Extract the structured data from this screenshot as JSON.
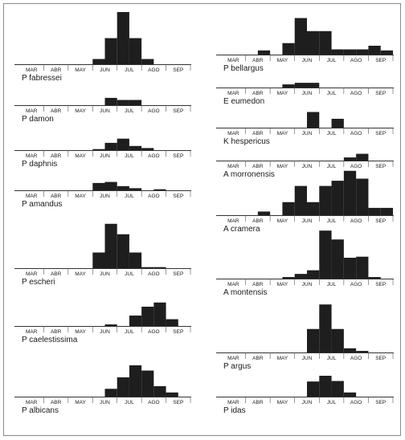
{
  "chart_data": [
    {
      "type": "bar",
      "name": "P fabressei",
      "categories": [
        "MAR",
        "ABR",
        "MAY",
        "JUN",
        "JUL",
        "AGO",
        "SEP"
      ],
      "half_month_values": [
        0,
        0,
        0,
        0,
        0,
        0,
        1,
        5,
        10,
        5,
        1,
        0,
        0,
        0
      ]
    },
    {
      "type": "bar",
      "name": "P damon",
      "categories": [
        "MAR",
        "ABR",
        "MAY",
        "JUN",
        "JUL",
        "AGO",
        "SEP"
      ],
      "half_month_values": [
        0,
        0,
        0,
        0,
        0,
        0,
        0,
        1.4,
        1.0,
        1.0,
        0,
        0,
        0,
        0
      ]
    },
    {
      "type": "bar",
      "name": "P daphnis",
      "categories": [
        "MAR",
        "ABR",
        "MAY",
        "JUN",
        "JUL",
        "AGO",
        "SEP"
      ],
      "half_month_values": [
        0,
        0,
        0,
        0,
        0,
        0,
        0.2,
        1.4,
        2.2,
        0.8,
        0.4,
        0,
        0,
        0
      ]
    },
    {
      "type": "bar",
      "name": "P amandus",
      "categories": [
        "MAR",
        "ABR",
        "MAY",
        "JUN",
        "JUL",
        "AGO",
        "SEP"
      ],
      "half_month_values": [
        0,
        0,
        0,
        0,
        0,
        0,
        1.4,
        1.6,
        0.8,
        0.4,
        0,
        0.2,
        0,
        0
      ]
    },
    {
      "type": "bar",
      "name": "P escheri",
      "categories": [
        "MAR",
        "ABR",
        "MAY",
        "JUN",
        "JUL",
        "AGO",
        "SEP"
      ],
      "half_month_values": [
        0,
        0,
        0,
        0,
        0,
        0,
        3,
        8.5,
        6.5,
        3,
        0.2,
        0.2,
        0,
        0
      ]
    },
    {
      "type": "bar",
      "name": "P caelestissima",
      "categories": [
        "MAR",
        "ABR",
        "MAY",
        "JUN",
        "JUL",
        "AGO",
        "SEP"
      ],
      "half_month_values": [
        0,
        0,
        0,
        0,
        0,
        0,
        0,
        0.3,
        0,
        2,
        3.7,
        4.5,
        1.3,
        0
      ]
    },
    {
      "type": "bar",
      "name": "P albicans",
      "categories": [
        "MAR",
        "ABR",
        "MAY",
        "JUN",
        "JUL",
        "AGO",
        "SEP"
      ],
      "half_month_values": [
        0,
        0,
        0,
        0,
        0,
        0,
        0,
        1.5,
        3.7,
        6,
        5,
        2,
        0.8,
        0
      ]
    },
    {
      "type": "bar",
      "name": "P bellargus",
      "categories": [
        "MAR",
        "ABR",
        "MAY",
        "JUN",
        "JUL",
        "AGO",
        "SEP"
      ],
      "half_month_values": [
        0,
        0,
        0,
        0.8,
        0,
        2.2,
        7,
        4.5,
        4.5,
        1,
        1,
        1,
        1.7,
        0.8
      ]
    },
    {
      "type": "bar",
      "name": "E eumedon",
      "categories": [
        "MAR",
        "ABR",
        "MAY",
        "JUN",
        "JUL",
        "AGO",
        "SEP"
      ],
      "half_month_values": [
        0,
        0,
        0,
        0,
        0,
        0.6,
        0.9,
        0.9,
        0,
        0,
        0,
        0,
        0,
        0
      ]
    },
    {
      "type": "bar",
      "name": "K hespericus",
      "categories": [
        "MAR",
        "ABR",
        "MAY",
        "JUN",
        "JUL",
        "AGO",
        "SEP"
      ],
      "half_month_values": [
        0,
        0,
        0,
        0,
        0,
        0,
        0,
        3,
        0,
        1.7,
        0,
        0,
        0,
        0
      ]
    },
    {
      "type": "bar",
      "name": "A morronensis",
      "categories": [
        "MAR",
        "ABR",
        "MAY",
        "JUN",
        "JUL",
        "AGO",
        "SEP"
      ],
      "half_month_values": [
        0,
        0,
        0,
        0,
        0,
        0,
        0,
        0,
        0,
        0,
        0.6,
        1.3,
        0,
        0
      ]
    },
    {
      "type": "bar",
      "name": "A cramera",
      "categories": [
        "MAR",
        "ABR",
        "MAY",
        "JUN",
        "JUL",
        "AGO",
        "SEP"
      ],
      "half_month_values": [
        0,
        0,
        0,
        0.7,
        0,
        2.5,
        5.6,
        2.5,
        5.6,
        6.6,
        8.5,
        7,
        1.4,
        1.4
      ]
    },
    {
      "type": "bar",
      "name": "A montensis",
      "categories": [
        "MAR",
        "ABR",
        "MAY",
        "JUN",
        "JUL",
        "AGO",
        "SEP"
      ],
      "half_month_values": [
        0,
        0,
        0,
        0,
        0,
        0.3,
        0.9,
        1.6,
        9.2,
        7.5,
        4,
        4.2,
        0.3,
        0
      ]
    },
    {
      "type": "bar",
      "name": "P argus",
      "categories": [
        "MAR",
        "ABR",
        "MAY",
        "JUN",
        "JUL",
        "AGO",
        "SEP"
      ],
      "half_month_values": [
        0,
        0,
        0,
        0,
        0,
        0,
        0,
        4.5,
        9.2,
        4.5,
        0.8,
        0.3,
        0,
        0
      ]
    },
    {
      "type": "bar",
      "name": "P idas",
      "categories": [
        "MAR",
        "ABR",
        "MAY",
        "JUN",
        "JUL",
        "AGO",
        "SEP"
      ],
      "half_month_values": [
        0,
        0,
        0,
        0,
        0,
        0,
        0,
        2.9,
        4,
        3,
        0.8,
        0,
        0,
        0
      ]
    }
  ],
  "colors": {
    "bar": "#1e1e1e",
    "axis": "#333333",
    "frame": "#8a8a8a"
  }
}
